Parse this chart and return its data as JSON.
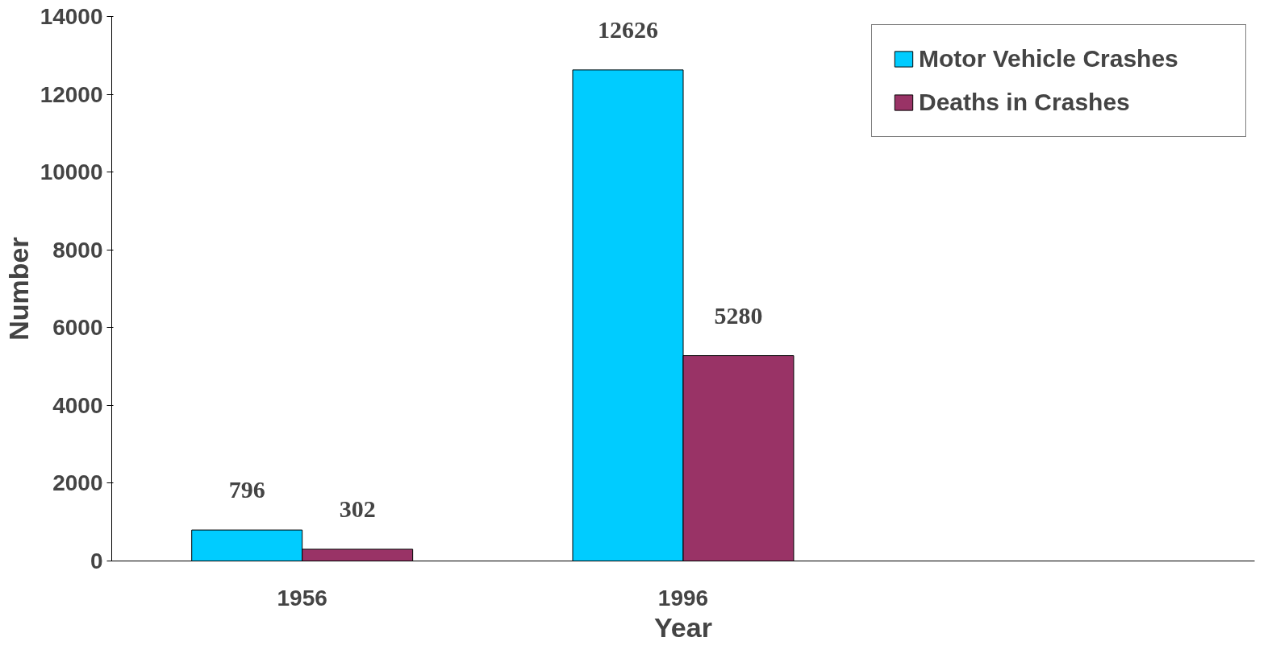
{
  "chart_data": {
    "type": "bar",
    "xlabel": "Year",
    "ylabel": "Number",
    "categories": [
      "1956",
      "1996",
      null
    ],
    "series": [
      {
        "name": "Motor Vehicle Crashes",
        "color": "#00ccff",
        "values": [
          796,
          12626,
          null
        ]
      },
      {
        "name": "Deaths in Crashes",
        "color": "#993366",
        "values": [
          302,
          5280,
          null
        ]
      }
    ],
    "ylim": [
      0,
      14000
    ],
    "yticks": [
      0,
      2000,
      4000,
      6000,
      8000,
      10000,
      12000,
      14000
    ],
    "data_labels": true,
    "legend": "top right",
    "grid": false
  }
}
